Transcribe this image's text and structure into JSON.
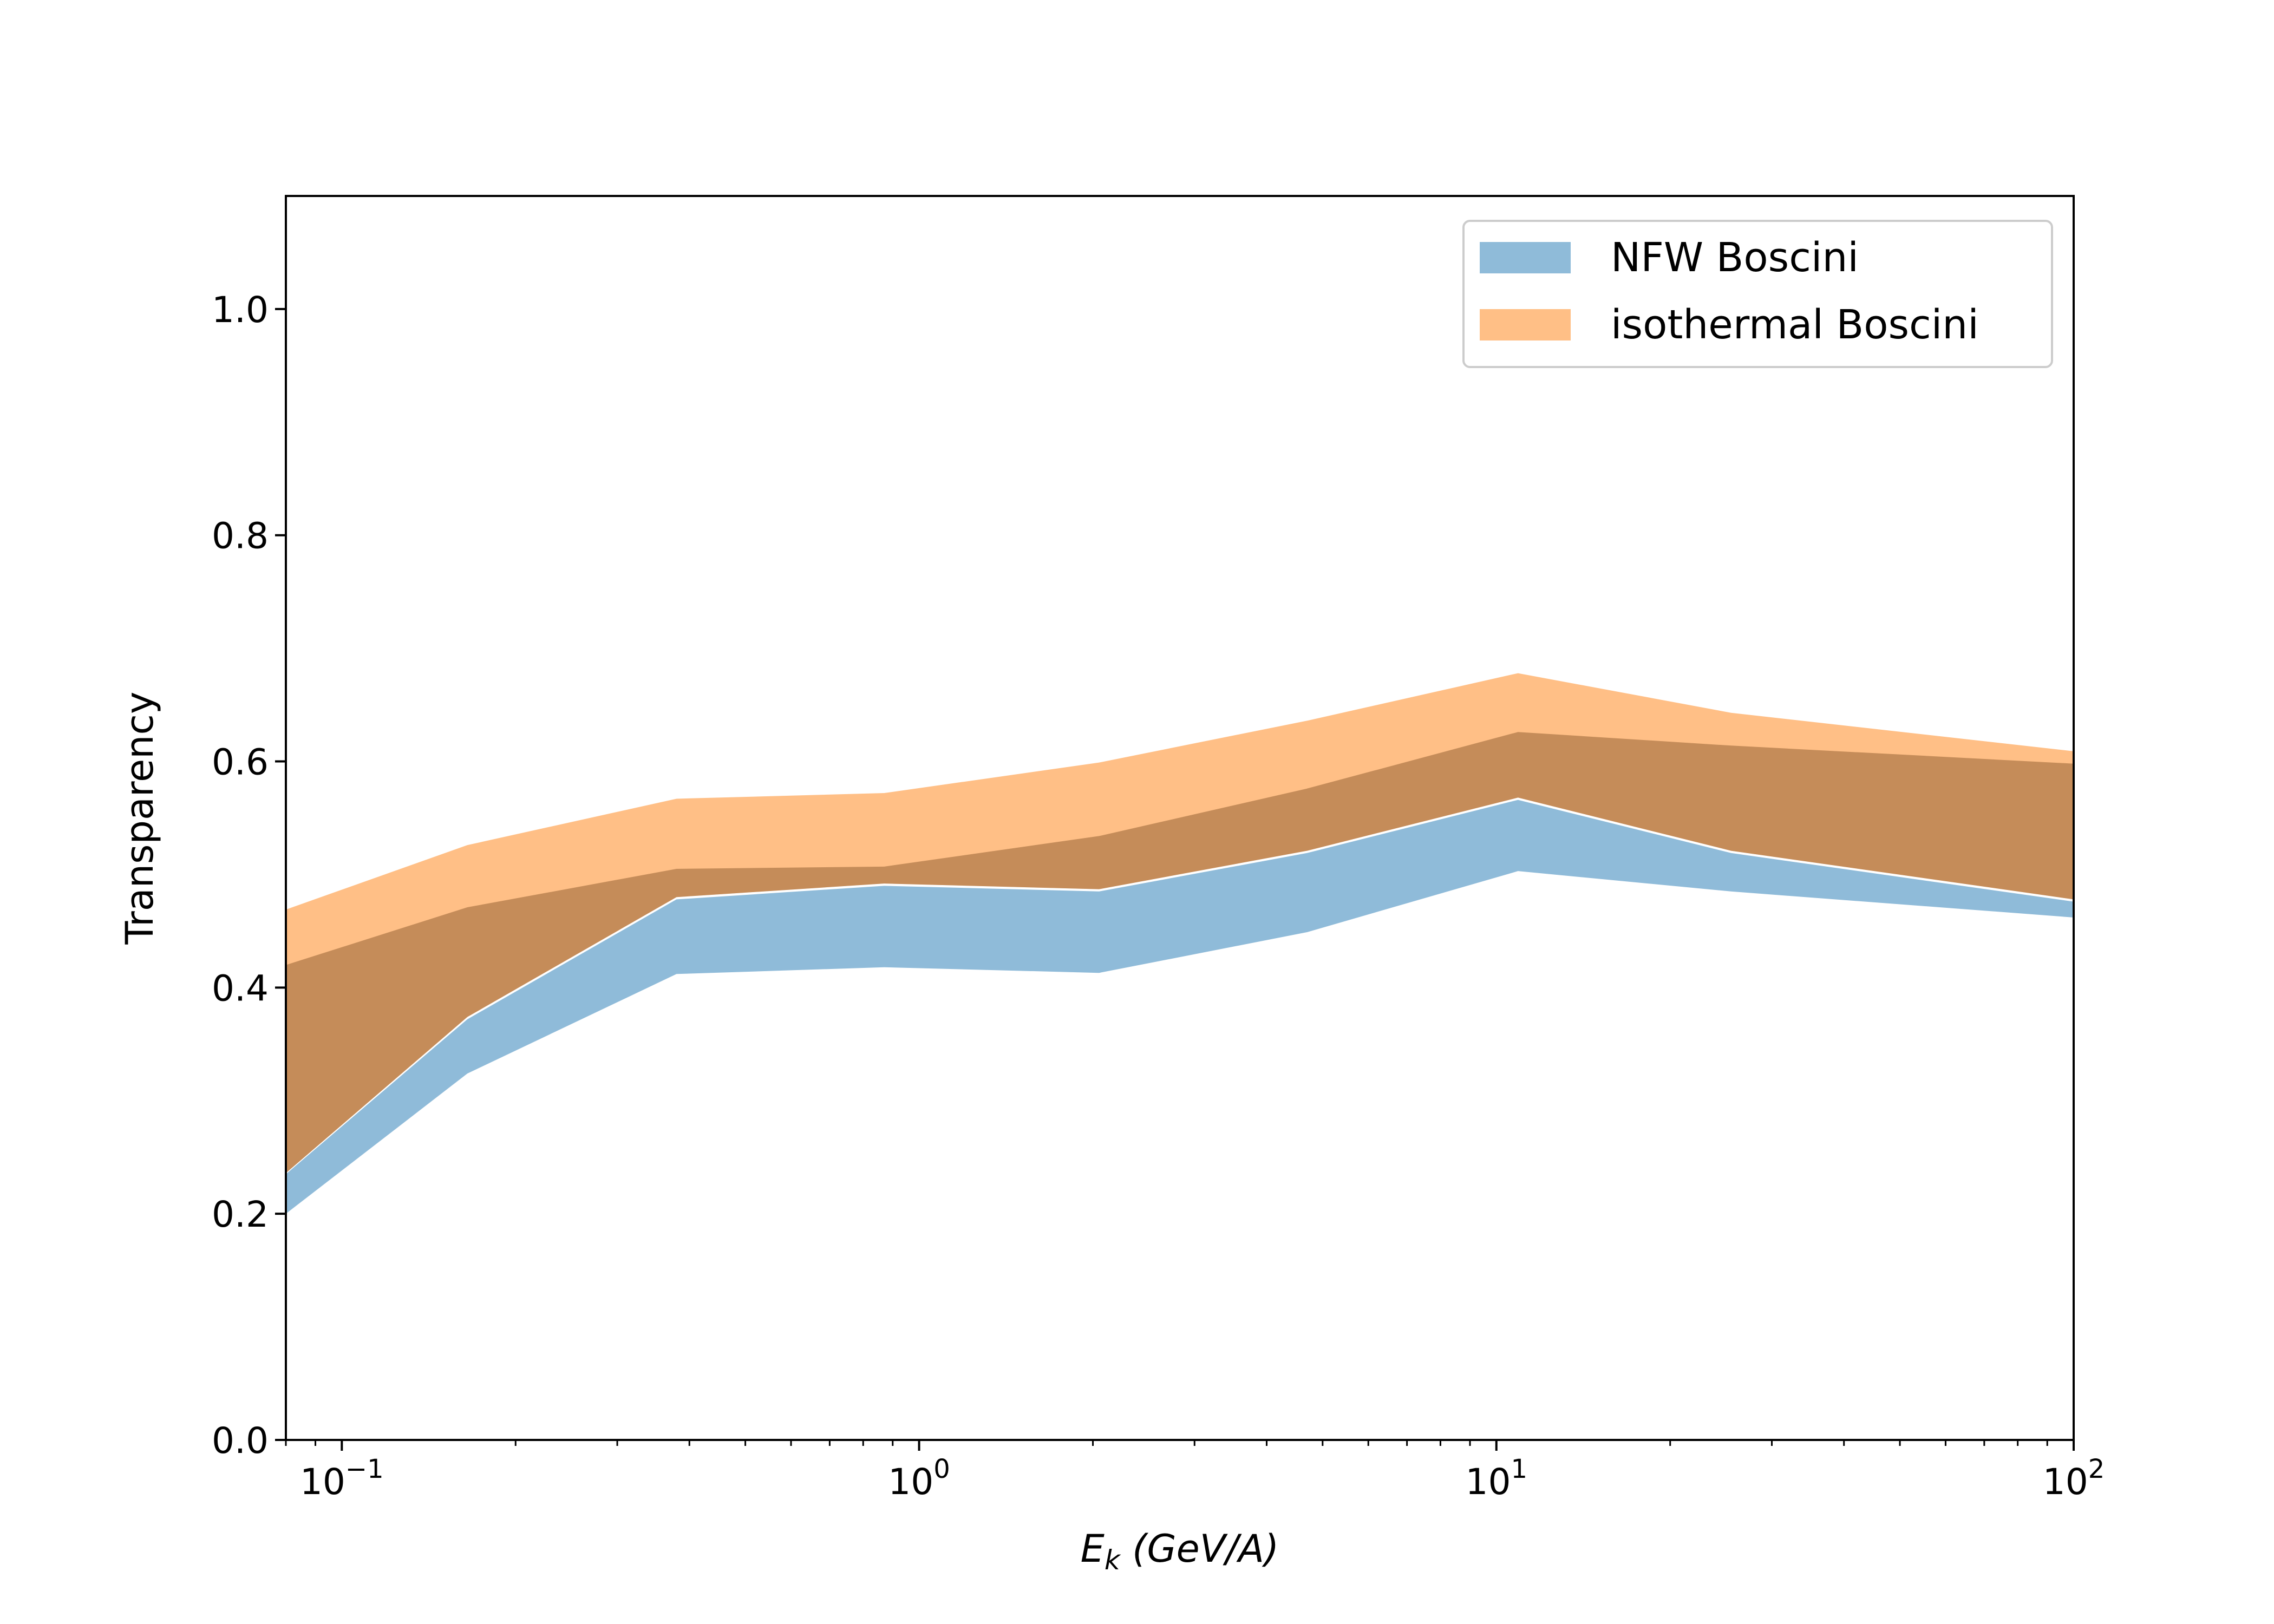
{
  "chart_data": {
    "type": "area",
    "xscale": "log",
    "xlim": [
      0.08,
      100
    ],
    "ylim": [
      0,
      1.1
    ],
    "grid": false,
    "legend_position": "top-right",
    "xlabel": {
      "main": "E",
      "sub": "k",
      "rest": " (GeV/A)"
    },
    "ylabel": "Transparency",
    "yticks": [
      {
        "value": 0.0,
        "label": "0.0"
      },
      {
        "value": 0.2,
        "label": "0.2"
      },
      {
        "value": 0.4,
        "label": "0.4"
      },
      {
        "value": 0.6,
        "label": "0.6"
      },
      {
        "value": 0.8,
        "label": "0.8"
      },
      {
        "value": 1.0,
        "label": "1.0"
      }
    ],
    "xticks": [
      {
        "value": 0.1,
        "base": "10",
        "exp": "−1"
      },
      {
        "value": 1,
        "base": "10",
        "exp": "0"
      },
      {
        "value": 10,
        "base": "10",
        "exp": "1"
      },
      {
        "value": 100,
        "base": "10",
        "exp": "2"
      }
    ],
    "x": [
      0.08,
      0.165,
      0.38,
      0.87,
      2.05,
      4.7,
      10.9,
      25.5,
      100
    ],
    "series": [
      {
        "name": "NFW Boscini",
        "color": "#1f77b4",
        "opacity": 0.5,
        "lower": [
          0.2,
          0.324,
          0.412,
          0.418,
          0.413,
          0.449,
          0.503,
          0.485,
          0.462
        ],
        "upper": [
          0.235,
          0.372,
          0.478,
          0.49,
          0.485,
          0.519,
          0.566,
          0.519,
          0.476
        ]
      },
      {
        "name": "isothermal Boscini",
        "color": "#ff7f0e",
        "opacity": 0.5,
        "lower": [
          0.236,
          0.374,
          0.48,
          0.492,
          0.487,
          0.521,
          0.568,
          0.521,
          0.478
        ],
        "upper": [
          0.469,
          0.526,
          0.567,
          0.572,
          0.599,
          0.636,
          0.678,
          0.643,
          0.609
        ]
      },
      {
        "name": "",
        "color": "#8b5a2b",
        "opacity": 0.5,
        "lower": [
          0.236,
          0.374,
          0.48,
          0.492,
          0.487,
          0.521,
          0.568,
          0.521,
          0.478
        ],
        "upper": [
          0.42,
          0.471,
          0.505,
          0.507,
          0.534,
          0.576,
          0.626,
          0.614,
          0.598
        ]
      }
    ]
  }
}
